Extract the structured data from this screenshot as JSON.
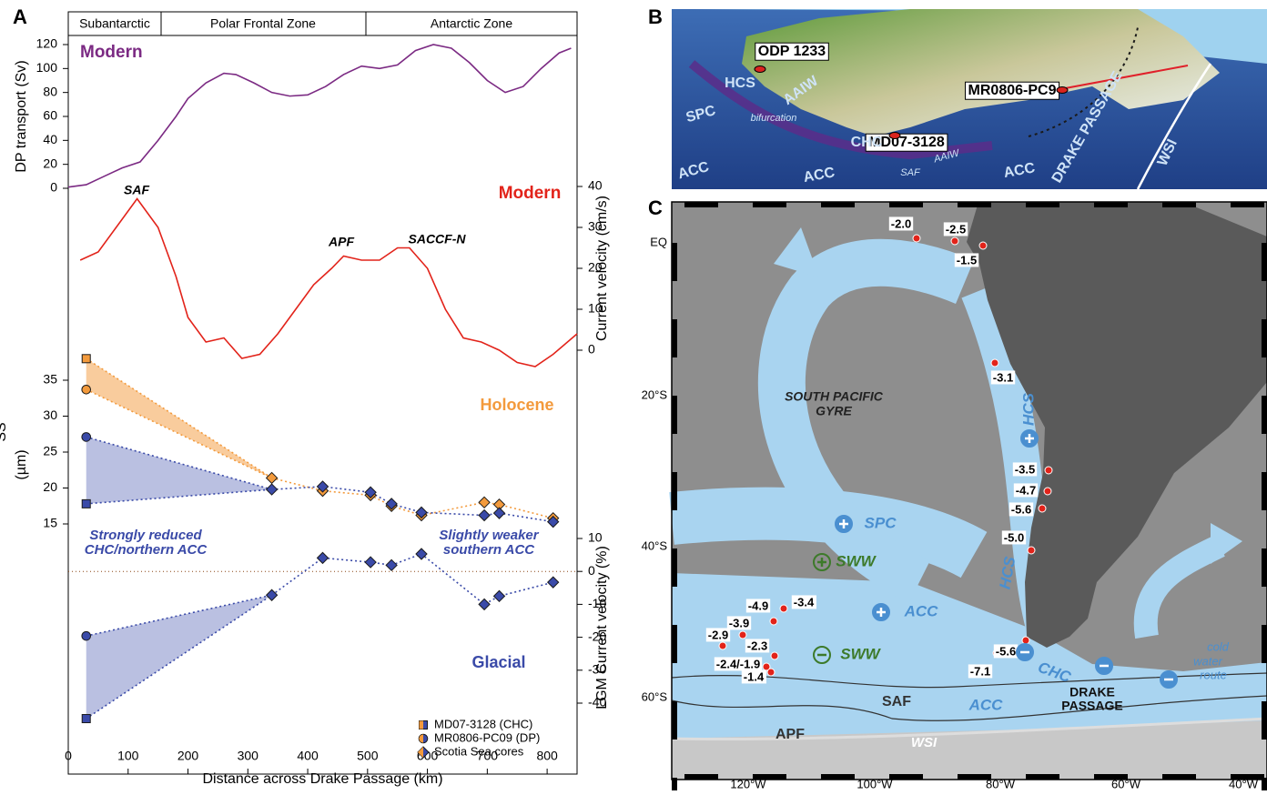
{
  "panel_labels": [
    "A",
    "B",
    "C"
  ],
  "zones": [
    "Subantarctic",
    "Polar Frontal Zone",
    "Antarctic Zone"
  ],
  "chart_data": [
    {
      "type": "line",
      "ylabel": "DP transport (Sv)",
      "ylim": [
        0,
        120
      ],
      "yticks": [
        0,
        20,
        40,
        60,
        80,
        100,
        120
      ],
      "xlim": [
        0,
        850
      ],
      "series": [
        {
          "name": "Modern",
          "color": "#7b2a83",
          "x": [
            0,
            30,
            60,
            90,
            120,
            150,
            180,
            200,
            230,
            260,
            280,
            310,
            340,
            370,
            400,
            430,
            460,
            490,
            520,
            550,
            580,
            610,
            640,
            670,
            700,
            730,
            760,
            790,
            820,
            840
          ],
          "values": [
            1,
            3,
            10,
            17,
            22,
            40,
            60,
            75,
            88,
            96,
            95,
            88,
            80,
            77,
            78,
            85,
            95,
            102,
            100,
            103,
            115,
            120,
            117,
            105,
            90,
            80,
            85,
            100,
            113,
            117
          ]
        }
      ]
    },
    {
      "type": "line",
      "axis": "right",
      "ylabel": "Current velocity (cm/s)",
      "ylim": [
        0,
        40
      ],
      "yticks": [
        0,
        10,
        20,
        30,
        40
      ],
      "xlim": [
        0,
        850
      ],
      "annotations": [
        "SAF",
        "APF",
        "SACCF-N"
      ],
      "series": [
        {
          "name": "Modern",
          "color": "#e2231a",
          "x": [
            20,
            50,
            80,
            115,
            150,
            180,
            200,
            230,
            260,
            290,
            320,
            350,
            380,
            410,
            440,
            460,
            490,
            520,
            550,
            570,
            600,
            630,
            660,
            690,
            720,
            750,
            780,
            810,
            850
          ],
          "values": [
            22,
            24,
            30,
            37,
            30,
            18,
            8,
            2,
            3,
            -2,
            -1,
            4,
            10,
            16,
            20,
            23,
            22,
            22,
            25,
            25,
            20,
            10,
            3,
            2,
            0,
            -3,
            -4,
            -1,
            4
          ]
        }
      ]
    },
    {
      "type": "scatter",
      "ylabel": "SS",
      "yunit": "(µm)",
      "ylim": [
        15,
        35
      ],
      "yticks": [
        15,
        20,
        25,
        30,
        35
      ],
      "xlim": [
        0,
        850
      ],
      "periods": [
        {
          "name": "Holocene",
          "color": "#f39a3c"
        },
        {
          "name": "Glacial",
          "color": "#3a4aa8"
        }
      ],
      "series": [
        {
          "name": "MD07-3128 (CHC)",
          "marker": "square",
          "x": [
            30
          ],
          "holocene": [
            38
          ],
          "glacial": [
            17.8
          ]
        },
        {
          "name": "MR0806-PC09 (DP)",
          "marker": "circle",
          "x": [
            30
          ],
          "holocene": [
            33.7
          ],
          "glacial": [
            27.1
          ]
        },
        {
          "name": "Scotia Sea cores",
          "marker": "diamond",
          "x": [
            340,
            425,
            505,
            540,
            590,
            695,
            720,
            810
          ],
          "holocene": [
            21.4,
            19.6,
            19,
            17.5,
            16.2,
            18,
            17.7,
            15.8
          ],
          "glacial": [
            19.8,
            20.2,
            19.4,
            17.8,
            16.6,
            16.2,
            16.5,
            15.3
          ]
        }
      ]
    },
    {
      "type": "scatter",
      "axis": "right",
      "ylabel": "LGM Current velocity (%)",
      "ylim": [
        -40,
        10
      ],
      "yticks": [
        -40,
        -30,
        -20,
        -10,
        0,
        10
      ],
      "xlim": [
        0,
        850
      ],
      "xticks": [
        0,
        100,
        200,
        300,
        400,
        500,
        600,
        700,
        800
      ],
      "xlabel": "Distance across Drake Passage (km)",
      "color": "#3a4aa8",
      "annotations": [
        "Strongly reduced",
        "CHC/northern ACC",
        "Slightly weaker",
        "southern ACC"
      ],
      "series": [
        {
          "marker": "square",
          "x": [
            30
          ],
          "values": [
            -44.7
          ]
        },
        {
          "marker": "circle",
          "x": [
            30
          ],
          "values": [
            -19.6
          ]
        },
        {
          "marker": "diamond",
          "x": [
            340,
            425,
            505,
            540,
            590,
            695,
            720,
            810
          ],
          "values": [
            -7.2,
            4.1,
            2.8,
            1.9,
            5.3,
            -10,
            -7.5,
            -3.3
          ]
        }
      ]
    }
  ],
  "map_b": {
    "labels": [
      "ODP 1233",
      "HCS",
      "AAIW",
      "SPC",
      "bifurcation",
      "MD07-3128",
      "CHC",
      "MR0806-PC9",
      "DRAKE PASSAGE",
      "WSI",
      "ACC",
      "ACC",
      "SAF",
      "AAIW",
      "ACC"
    ]
  },
  "map_c": {
    "core_values": [
      "-2.0",
      "-2.5",
      "-1.5",
      "-3.1",
      "-3.5",
      "-4.7",
      "-5.6",
      "-5.0",
      "-4.9",
      "-3.4",
      "-3.9",
      "-2.9",
      "-2.3",
      "-2.4/-1.9",
      "-1.4",
      "-5.6",
      "-7.1"
    ],
    "labels": [
      "SOUTH PACIFIC",
      "GYRE",
      "HCS",
      "SPC",
      "SWW",
      "ACC",
      "SWW",
      "HCS",
      "CHC",
      "ACC",
      "SAF",
      "APF",
      "WSI",
      "DRAKE",
      "PASSAGE",
      "cold",
      "water",
      "route"
    ],
    "lat_ticks": [
      "EQ",
      "20°S",
      "40°S",
      "60°S"
    ],
    "lon_ticks": [
      "120°W",
      "100°W",
      "80°W",
      "60°W",
      "40°W"
    ]
  }
}
